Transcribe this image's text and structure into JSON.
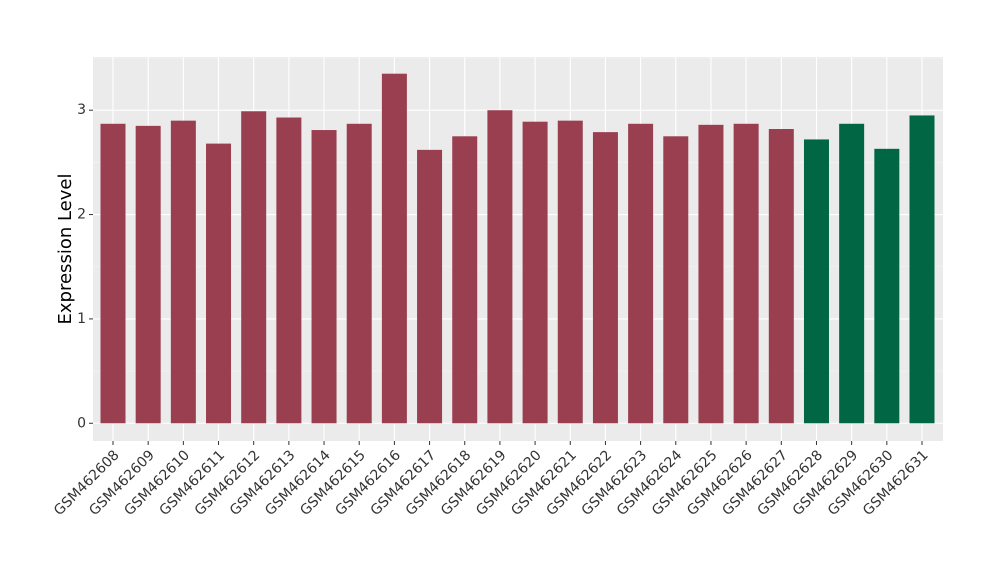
{
  "chart_data": {
    "type": "bar",
    "y_label": "Expression Level",
    "categories": [
      "GSM462608",
      "GSM462609",
      "GSM462610",
      "GSM462611",
      "GSM462612",
      "GSM462613",
      "GSM462614",
      "GSM462615",
      "GSM462616",
      "GSM462617",
      "GSM462618",
      "GSM462619",
      "GSM462620",
      "GSM462621",
      "GSM462622",
      "GSM462623",
      "GSM462624",
      "GSM462625",
      "GSM462626",
      "GSM462627",
      "GSM462628",
      "GSM462629",
      "GSM462630",
      "GSM462631"
    ],
    "values": [
      2.87,
      2.85,
      2.9,
      2.68,
      2.99,
      2.93,
      2.81,
      2.87,
      3.35,
      2.62,
      2.75,
      3.0,
      2.89,
      2.9,
      2.79,
      2.87,
      2.75,
      2.86,
      2.87,
      2.82,
      2.72,
      2.87,
      2.63,
      2.95
    ],
    "colors": [
      "#993f50",
      "#993f50",
      "#993f50",
      "#993f50",
      "#993f50",
      "#993f50",
      "#993f50",
      "#993f50",
      "#993f50",
      "#993f50",
      "#993f50",
      "#993f50",
      "#993f50",
      "#993f50",
      "#993f50",
      "#993f50",
      "#993f50",
      "#993f50",
      "#993f50",
      "#993f50",
      "#006644",
      "#006644",
      "#006644",
      "#006644"
    ],
    "ylim": [
      -0.17,
      3.51
    ],
    "yticks": [
      0,
      1,
      2,
      3
    ],
    "grid": true
  }
}
